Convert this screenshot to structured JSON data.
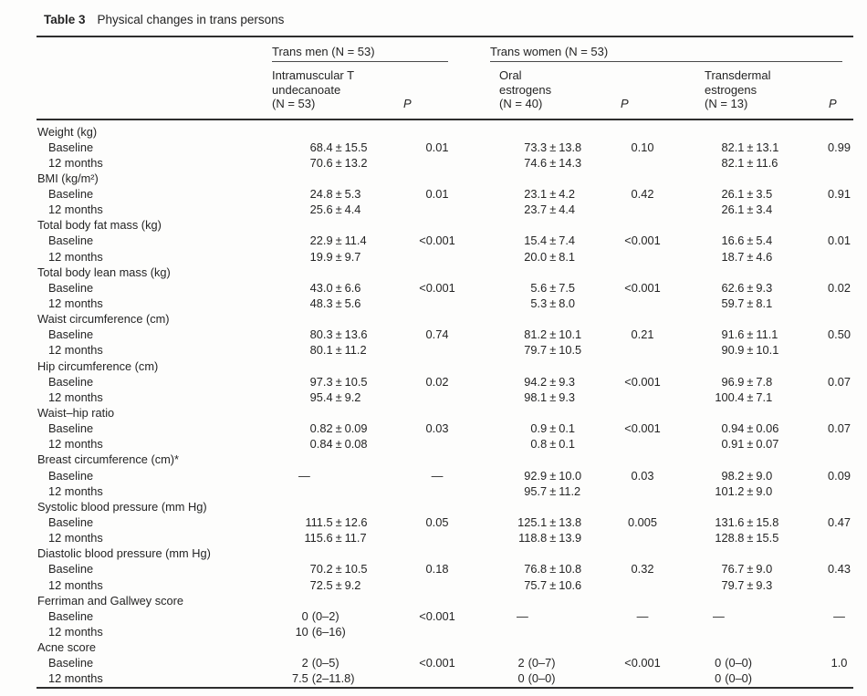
{
  "page": {
    "background": "#fdfdfc",
    "text_color": "#242424",
    "rule_color": "#2e2e2e"
  },
  "caption": {
    "label": "Table 3",
    "title": "Physical changes in trans persons"
  },
  "header": {
    "groups": [
      {
        "id": "trans-men",
        "label": "Trans men (N = 53)"
      },
      {
        "id": "trans-women",
        "label": "Trans women (N = 53)"
      }
    ],
    "columns": [
      {
        "id": "tm-intramuscular-t",
        "lines": [
          "Intramuscular T",
          "undecanoate",
          "(N = 53)"
        ]
      },
      {
        "id": "tm-p",
        "label": "P"
      },
      {
        "id": "tw-oral-estrogens",
        "lines": [
          "Oral",
          "estrogens",
          "(N = 40)"
        ]
      },
      {
        "id": "tw-oral-p",
        "label": "P"
      },
      {
        "id": "tw-transdermal-estrogens",
        "lines": [
          "Transdermal",
          "estrogens",
          "(N = 13)"
        ]
      },
      {
        "id": "tw-transdermal-p",
        "label": "P"
      }
    ]
  },
  "sections": [
    {
      "label": "Weight (kg)",
      "rows": [
        {
          "label": "Baseline",
          "cells": [
            "68.4 ± 15.5",
            "0.01",
            "73.3 ± 13.8",
            "0.10",
            "82.1 ± 13.1",
            "0.99"
          ]
        },
        {
          "label": "12 months",
          "cells": [
            "70.6 ± 13.2",
            "",
            "74.6 ± 14.3",
            "",
            "82.1 ± 11.6",
            ""
          ]
        }
      ]
    },
    {
      "label": "BMI (kg/m²)",
      "rows": [
        {
          "label": "Baseline",
          "cells": [
            "24.8 ± 5.3",
            "0.01",
            "23.1 ± 4.2",
            "0.42",
            "26.1 ± 3.5",
            "0.91"
          ]
        },
        {
          "label": "12 months",
          "cells": [
            "25.6 ± 4.4",
            "",
            "23.7 ± 4.4",
            "",
            "26.1 ± 3.4",
            ""
          ]
        }
      ]
    },
    {
      "label": "Total body fat mass (kg)",
      "rows": [
        {
          "label": "Baseline",
          "cells": [
            "22.9 ± 11.4",
            "<0.001",
            "15.4 ± 7.4",
            "<0.001",
            "16.6 ± 5.4",
            "0.01"
          ]
        },
        {
          "label": "12 months",
          "cells": [
            "19.9 ± 9.7",
            "",
            "20.0 ± 8.1",
            "",
            "18.7 ± 4.6",
            ""
          ]
        }
      ]
    },
    {
      "label": "Total body lean mass (kg)",
      "rows": [
        {
          "label": "Baseline",
          "cells": [
            "43.0 ± 6.6",
            "<0.001",
            "5.6 ± 7.5",
            "<0.001",
            "62.6 ± 9.3",
            "0.02"
          ]
        },
        {
          "label": "12 months",
          "cells": [
            "48.3 ± 5.6",
            "",
            "5.3 ± 8.0",
            "",
            "59.7 ± 8.1",
            ""
          ]
        }
      ]
    },
    {
      "label": "Waist circumference (cm)",
      "rows": [
        {
          "label": "Baseline",
          "cells": [
            "80.3 ± 13.6",
            "0.74",
            "81.2 ± 10.1",
            "0.21",
            "91.6 ± 11.1",
            "0.50"
          ]
        },
        {
          "label": "12 months",
          "cells": [
            "80.1 ± 11.2",
            "",
            "79.7 ± 10.5",
            "",
            "90.9 ± 10.1",
            ""
          ]
        }
      ]
    },
    {
      "label": "Hip circumference (cm)",
      "rows": [
        {
          "label": "Baseline",
          "cells": [
            "97.3 ± 10.5",
            "0.02",
            "94.2 ± 9.3",
            "<0.001",
            "96.9 ± 7.8",
            "0.07"
          ]
        },
        {
          "label": "12 months",
          "cells": [
            "95.4 ± 9.2",
            "",
            "98.1 ± 9.3",
            "",
            "100.4 ± 7.1",
            ""
          ]
        }
      ]
    },
    {
      "label": "Waist–hip ratio",
      "rows": [
        {
          "label": "Baseline",
          "cells": [
            "0.82 ± 0.09",
            "0.03",
            "0.9 ± 0.1",
            "<0.001",
            "0.94 ± 0.06",
            "0.07"
          ]
        },
        {
          "label": "12 months",
          "cells": [
            "0.84 ± 0.08",
            "",
            "0.8 ± 0.1",
            "",
            "0.91 ± 0.07",
            ""
          ]
        }
      ]
    },
    {
      "label": "Breast circumference (cm)*",
      "rows": [
        {
          "label": "Baseline",
          "cells": [
            "—",
            "—",
            "92.9 ± 10.0",
            "0.03",
            "98.2 ± 9.0",
            "0.09"
          ]
        },
        {
          "label": "12 months",
          "cells": [
            "",
            "",
            "95.7 ± 11.2",
            "",
            "101.2 ± 9.0",
            ""
          ]
        }
      ]
    },
    {
      "label": "Systolic blood pressure (mm Hg)",
      "rows": [
        {
          "label": "Baseline",
          "cells": [
            "111.5 ± 12.6",
            "0.05",
            "125.1 ± 13.8",
            "0.005",
            "131.6 ± 15.8",
            "0.47"
          ]
        },
        {
          "label": "12 months",
          "cells": [
            "115.6 ± 11.7",
            "",
            "118.8 ± 13.9",
            "",
            "128.8 ± 15.5",
            ""
          ]
        }
      ]
    },
    {
      "label": "Diastolic blood pressure (mm Hg)",
      "rows": [
        {
          "label": "Baseline",
          "cells": [
            "70.2 ± 10.5",
            "0.18",
            "76.8 ± 10.8",
            "0.32",
            "76.7 ± 9.0",
            "0.43"
          ]
        },
        {
          "label": "12 months",
          "cells": [
            "72.5 ± 9.2",
            "",
            "75.7 ± 10.6",
            "",
            "79.7 ± 9.3",
            ""
          ]
        }
      ]
    },
    {
      "label": "Ferriman and Gallwey score",
      "rows": [
        {
          "label": "Baseline",
          "cells": [
            "0 (0–2)",
            "<0.001",
            "—",
            "—",
            "—",
            "—"
          ]
        },
        {
          "label": "12 months",
          "cells": [
            "10 (6–16)",
            "",
            "",
            "",
            "",
            ""
          ]
        }
      ]
    },
    {
      "label": "Acne score",
      "rows": [
        {
          "label": "Baseline",
          "cells": [
            "2 (0–5)",
            "<0.001",
            "2 (0–7)",
            "<0.001",
            "0 (0–0)",
            "1.0"
          ]
        },
        {
          "label": "12 months",
          "cells": [
            "7.5 (2–11.8)",
            "",
            "0 (0–0)",
            "",
            "0 (0–0)",
            ""
          ]
        }
      ]
    }
  ]
}
